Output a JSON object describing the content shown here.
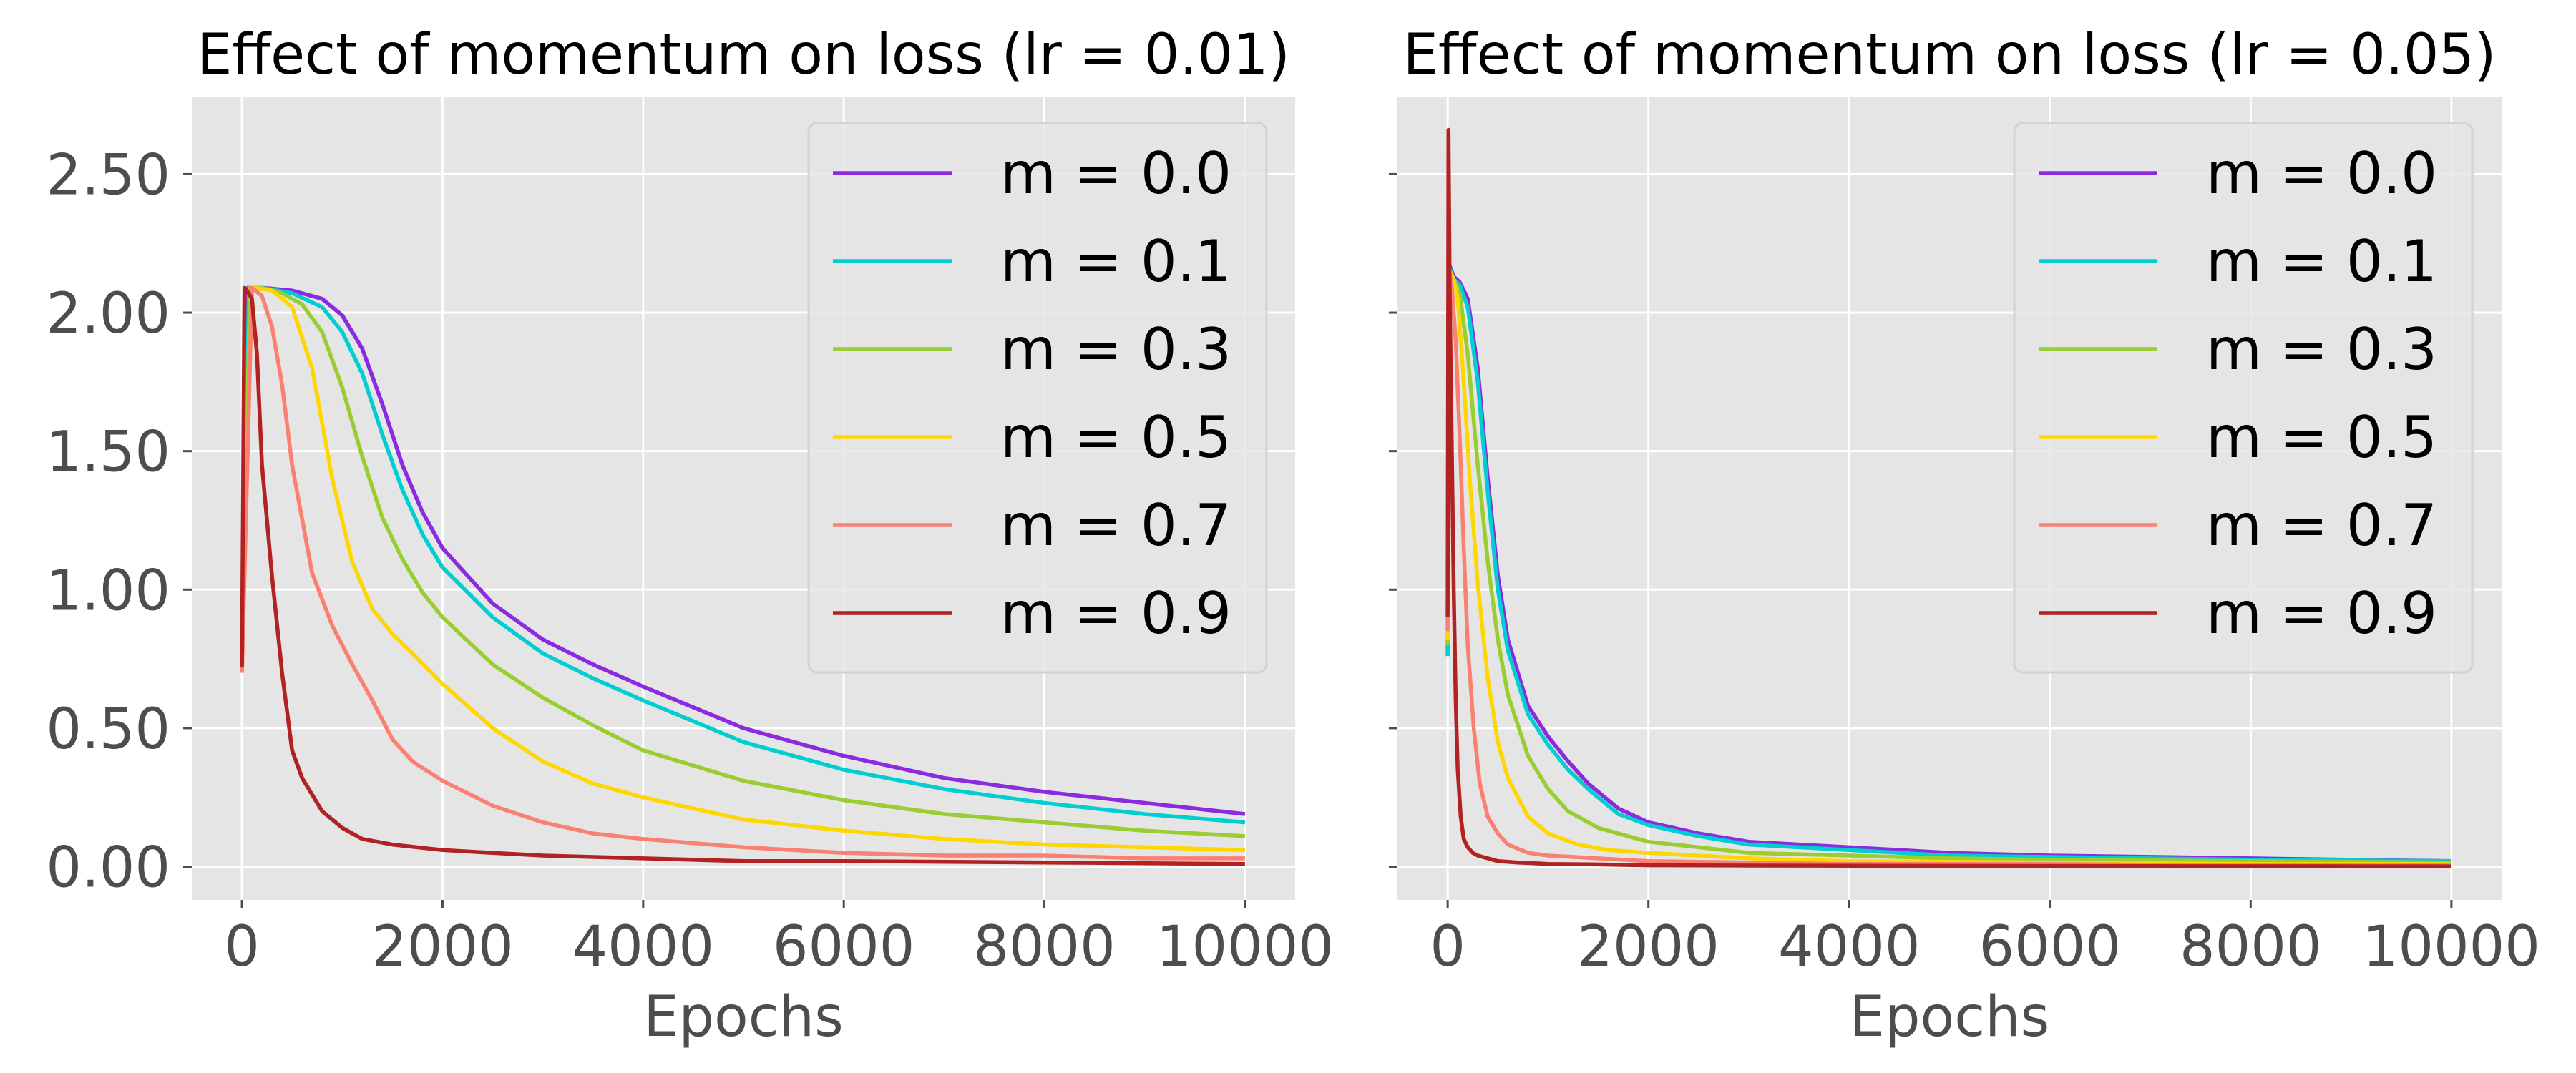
{
  "chart_data": [
    {
      "type": "line",
      "title": "Effect of momentum on loss (lr = 0.01)",
      "xlabel": "Epochs",
      "ylabel": "",
      "xlim": [
        -500,
        10500
      ],
      "ylim": [
        -0.12,
        2.78
      ],
      "xticks": [
        0,
        2000,
        4000,
        6000,
        8000,
        10000
      ],
      "xtick_labels": [
        "0",
        "2000",
        "4000",
        "6000",
        "8000",
        "10000"
      ],
      "yticks": [
        0,
        0.5,
        1.0,
        1.5,
        2.0,
        2.5
      ],
      "ytick_labels": [
        "0.00",
        "0.50",
        "1.00",
        "1.50",
        "2.00",
        "2.50"
      ],
      "show_ytick_labels": true,
      "grid": true,
      "legend_position": "top-right",
      "series": [
        {
          "name": "m = 0.0",
          "color": "#8a2be2",
          "x": [
            0,
            60,
            200,
            500,
            800,
            1000,
            1200,
            1400,
            1600,
            1800,
            2000,
            2500,
            3000,
            3500,
            4000,
            5000,
            6000,
            7000,
            8000,
            9000,
            10000
          ],
          "y": [
            0.72,
            2.09,
            2.09,
            2.08,
            2.05,
            1.99,
            1.87,
            1.67,
            1.45,
            1.28,
            1.15,
            0.95,
            0.82,
            0.73,
            0.65,
            0.5,
            0.4,
            0.32,
            0.27,
            0.23,
            0.19
          ]
        },
        {
          "name": "m = 0.1",
          "color": "#00ced1",
          "x": [
            0,
            70,
            200,
            500,
            800,
            1000,
            1200,
            1400,
            1600,
            1800,
            2000,
            2500,
            3000,
            3500,
            4000,
            5000,
            6000,
            7000,
            8000,
            9000,
            10000
          ],
          "y": [
            0.7,
            2.09,
            2.09,
            2.07,
            2.02,
            1.93,
            1.78,
            1.56,
            1.36,
            1.2,
            1.08,
            0.9,
            0.77,
            0.68,
            0.6,
            0.45,
            0.35,
            0.28,
            0.23,
            0.19,
            0.16
          ]
        },
        {
          "name": "m = 0.3",
          "color": "#9acd32",
          "x": [
            0,
            80,
            200,
            400,
            600,
            800,
            1000,
            1200,
            1400,
            1600,
            1800,
            2000,
            2500,
            3000,
            3500,
            4000,
            5000,
            6000,
            7000,
            8000,
            9000,
            10000
          ],
          "y": [
            0.7,
            2.09,
            2.09,
            2.07,
            2.03,
            1.93,
            1.73,
            1.48,
            1.26,
            1.11,
            0.99,
            0.9,
            0.73,
            0.61,
            0.51,
            0.42,
            0.31,
            0.24,
            0.19,
            0.16,
            0.13,
            0.11
          ]
        },
        {
          "name": "m = 0.5",
          "color": "#ffd700",
          "x": [
            0,
            100,
            300,
            500,
            700,
            900,
            1100,
            1300,
            1500,
            1700,
            2000,
            2500,
            3000,
            3500,
            4000,
            5000,
            6000,
            7000,
            8000,
            9000,
            10000
          ],
          "y": [
            0.7,
            2.09,
            2.08,
            2.02,
            1.8,
            1.4,
            1.1,
            0.93,
            0.84,
            0.77,
            0.66,
            0.5,
            0.38,
            0.3,
            0.25,
            0.17,
            0.13,
            0.1,
            0.08,
            0.07,
            0.06
          ]
        },
        {
          "name": "m = 0.7",
          "color": "#fa8072",
          "x": [
            0,
            100,
            200,
            300,
            400,
            500,
            700,
            900,
            1100,
            1300,
            1500,
            1700,
            2000,
            2500,
            3000,
            3500,
            4000,
            5000,
            6000,
            7000,
            8000,
            9000,
            10000
          ],
          "y": [
            0.7,
            2.09,
            2.06,
            1.95,
            1.74,
            1.45,
            1.06,
            0.87,
            0.73,
            0.6,
            0.46,
            0.38,
            0.31,
            0.22,
            0.16,
            0.12,
            0.1,
            0.07,
            0.05,
            0.04,
            0.04,
            0.03,
            0.03
          ]
        },
        {
          "name": "m = 0.9",
          "color": "#b22222",
          "x": [
            0,
            25,
            50,
            100,
            150,
            200,
            300,
            400,
            500,
            600,
            800,
            1000,
            1200,
            1500,
            2000,
            2500,
            3000,
            4000,
            5000,
            6000,
            8000,
            10000
          ],
          "y": [
            0.72,
            2.09,
            2.08,
            2.05,
            1.85,
            1.45,
            1.05,
            0.7,
            0.42,
            0.32,
            0.2,
            0.14,
            0.1,
            0.08,
            0.06,
            0.05,
            0.04,
            0.03,
            0.02,
            0.02,
            0.015,
            0.01
          ]
        }
      ]
    },
    {
      "type": "line",
      "title": "Effect of momentum on loss (lr = 0.05)",
      "xlabel": "Epochs",
      "ylabel": "",
      "xlim": [
        -500,
        10500
      ],
      "ylim": [
        -0.12,
        2.78
      ],
      "xticks": [
        0,
        2000,
        4000,
        6000,
        8000,
        10000
      ],
      "xtick_labels": [
        "0",
        "2000",
        "4000",
        "6000",
        "8000",
        "10000"
      ],
      "yticks": [
        0,
        0.5,
        1.0,
        1.5,
        2.0,
        2.5
      ],
      "ytick_labels": [
        "",
        "",
        "",
        "",
        "",
        ""
      ],
      "show_ytick_labels": false,
      "grid": true,
      "legend_position": "top-right",
      "series": [
        {
          "name": "m = 0.0",
          "color": "#8a2be2",
          "x": [
            0,
            20,
            60,
            120,
            200,
            300,
            400,
            500,
            600,
            800,
            1000,
            1200,
            1400,
            1700,
            2000,
            2500,
            3000,
            4000,
            5000,
            6000,
            8000,
            10000
          ],
          "y": [
            0.78,
            2.17,
            2.13,
            2.11,
            2.05,
            1.8,
            1.4,
            1.05,
            0.82,
            0.58,
            0.47,
            0.38,
            0.3,
            0.21,
            0.16,
            0.12,
            0.09,
            0.07,
            0.05,
            0.04,
            0.03,
            0.02
          ]
        },
        {
          "name": "m = 0.1",
          "color": "#00ced1",
          "x": [
            0,
            20,
            60,
            120,
            200,
            300,
            400,
            500,
            600,
            800,
            1000,
            1200,
            1400,
            1700,
            2000,
            2500,
            3000,
            4000,
            5000,
            6000,
            8000,
            10000
          ],
          "y": [
            0.76,
            2.16,
            2.12,
            2.1,
            2.02,
            1.75,
            1.35,
            1.0,
            0.78,
            0.55,
            0.44,
            0.35,
            0.28,
            0.19,
            0.15,
            0.11,
            0.08,
            0.06,
            0.04,
            0.035,
            0.025,
            0.02
          ]
        },
        {
          "name": "m = 0.3",
          "color": "#9acd32",
          "x": [
            0,
            20,
            60,
            120,
            200,
            300,
            400,
            500,
            600,
            800,
            1000,
            1200,
            1500,
            2000,
            2500,
            3000,
            4000,
            5000,
            6000,
            8000,
            10000
          ],
          "y": [
            0.8,
            2.15,
            2.12,
            2.07,
            1.85,
            1.45,
            1.1,
            0.82,
            0.62,
            0.4,
            0.28,
            0.2,
            0.14,
            0.09,
            0.07,
            0.05,
            0.04,
            0.03,
            0.025,
            0.02,
            0.015
          ]
        },
        {
          "name": "m = 0.5",
          "color": "#ffd700",
          "x": [
            0,
            20,
            60,
            100,
            160,
            220,
            300,
            400,
            500,
            600,
            800,
            1000,
            1300,
            1600,
            2000,
            2500,
            3000,
            4000,
            6000,
            8000,
            10000
          ],
          "y": [
            0.82,
            2.15,
            2.12,
            2.05,
            1.75,
            1.4,
            1.02,
            0.68,
            0.45,
            0.32,
            0.18,
            0.12,
            0.08,
            0.06,
            0.05,
            0.04,
            0.03,
            0.02,
            0.015,
            0.01,
            0.01
          ]
        },
        {
          "name": "m = 0.7",
          "color": "#fa8072",
          "x": [
            0,
            15,
            40,
            80,
            120,
            160,
            200,
            260,
            320,
            400,
            500,
            600,
            800,
            1000,
            1500,
            2000,
            3000,
            4000,
            6000,
            8000,
            10000
          ],
          "y": [
            0.85,
            2.15,
            2.1,
            1.9,
            1.55,
            1.15,
            0.8,
            0.5,
            0.3,
            0.18,
            0.12,
            0.08,
            0.05,
            0.04,
            0.03,
            0.02,
            0.015,
            0.01,
            0.01,
            0.005,
            0.005
          ]
        },
        {
          "name": "m = 0.9",
          "color": "#b22222",
          "x": [
            0,
            8,
            20,
            40,
            60,
            80,
            100,
            130,
            160,
            200,
            250,
            300,
            400,
            500,
            700,
            1000,
            1500,
            2000,
            3000,
            5000,
            7000,
            10000
          ],
          "y": [
            0.9,
            2.66,
            2.1,
            1.55,
            1.0,
            0.6,
            0.35,
            0.18,
            0.1,
            0.07,
            0.05,
            0.04,
            0.03,
            0.02,
            0.015,
            0.01,
            0.008,
            0.005,
            0.004,
            0.003,
            0.002,
            0.001
          ]
        }
      ]
    }
  ]
}
